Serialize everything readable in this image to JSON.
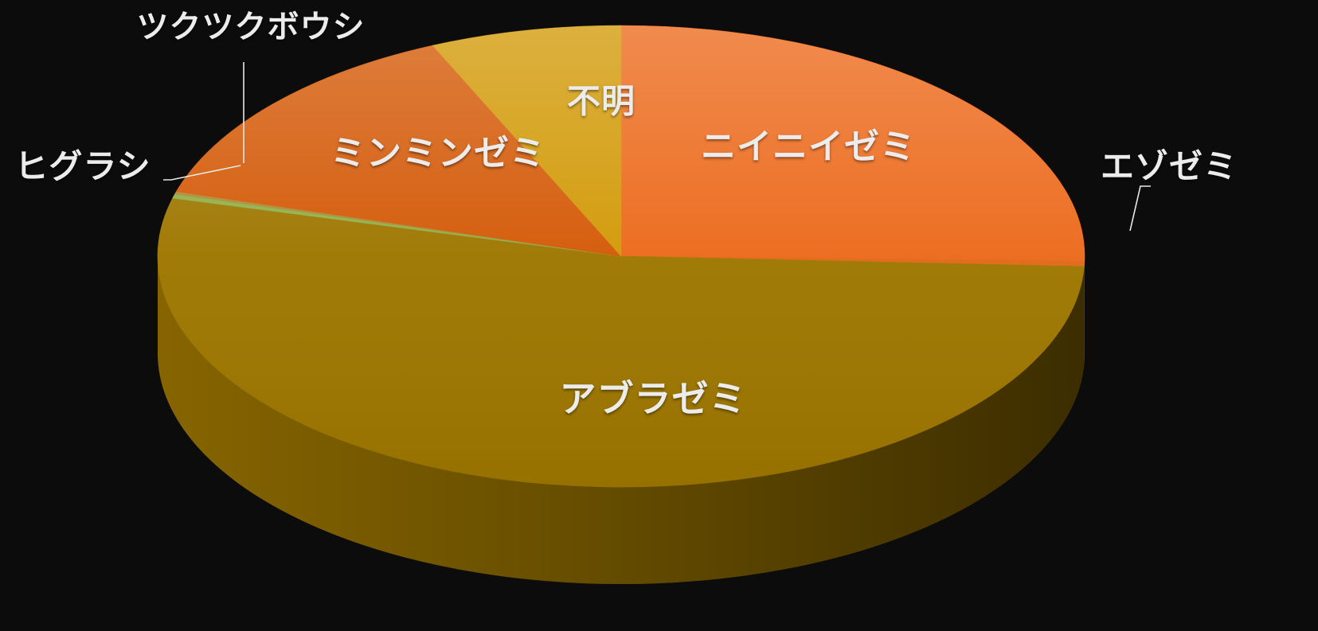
{
  "chart_data": {
    "type": "pie",
    "style": "3d",
    "title": "",
    "slices": [
      {
        "label": "ニイニイゼミ",
        "value": 26.6,
        "color": "#ec6a1c"
      },
      {
        "label": "エゾゼミ",
        "value": 0.4,
        "color": "#e06a18"
      },
      {
        "label": "アブラゼミ",
        "value": 56.0,
        "color": "#9e7700"
      },
      {
        "label": "ヒグラシ",
        "value": 0.3,
        "color": "#8fb04a"
      },
      {
        "label": "ツクツクボウシ",
        "value": 0.2,
        "color": "#b08a30"
      },
      {
        "label": "ミンミンゼミ",
        "value": 14.5,
        "color": "#d45a08"
      },
      {
        "label": "不明",
        "value": 7.0,
        "color": "#d29a08"
      }
    ],
    "legend": "none",
    "label_placement": "on-slice / leader-lines for small slices"
  }
}
